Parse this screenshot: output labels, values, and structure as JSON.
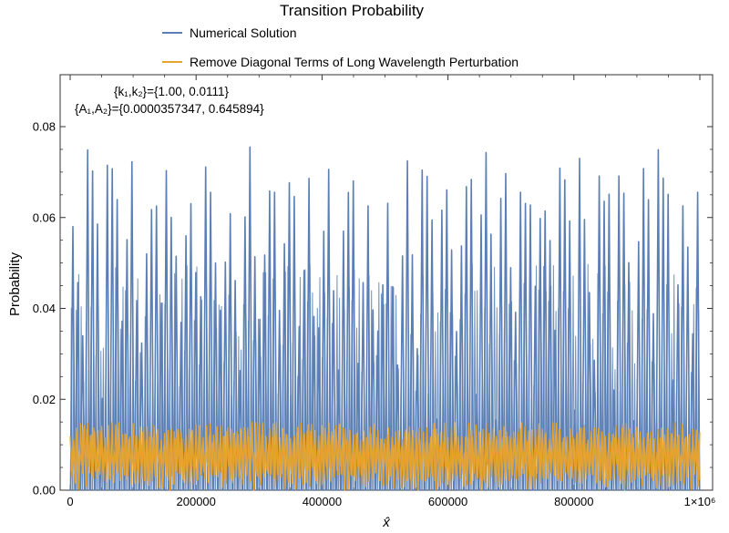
{
  "chart_data": {
    "type": "line",
    "title": "Transition Probability",
    "xlabel": "x̂",
    "ylabel": "Probability",
    "xlim": [
      0,
      1000000
    ],
    "ylim": [
      0,
      0.09
    ],
    "x_ticks": [
      0,
      200000,
      400000,
      600000,
      800000,
      1000000
    ],
    "x_tick_labels": [
      "0",
      "200000",
      "400000",
      "600000",
      "800000",
      "1×10⁶"
    ],
    "y_ticks": [
      0.0,
      0.02,
      0.04,
      0.06,
      0.08
    ],
    "y_tick_labels": [
      "0.00",
      "0.02",
      "0.04",
      "0.06",
      "0.08"
    ],
    "legend_position": "top",
    "annotations": [
      "{k₁,k₂}={1.00, 0.0111}",
      "{A₁,A₂}={0.0000357347, 0.645894}"
    ],
    "series": [
      {
        "name": "Numerical Solution",
        "color": "#5b7fb5",
        "description": "rapid oscillation between 0 and peaks ~0.058–0.076",
        "peak_range": [
          0.0,
          0.076
        ],
        "typical_peak": 0.072
      },
      {
        "name": "Remove Diagonal Terms of Long Wavelength Perturbation",
        "color": "#e8a32b",
        "description": "rapid oscillation between ~0.0 and ~0.015",
        "peak_range": [
          0.0,
          0.015
        ],
        "typical_peak": 0.014
      }
    ]
  }
}
